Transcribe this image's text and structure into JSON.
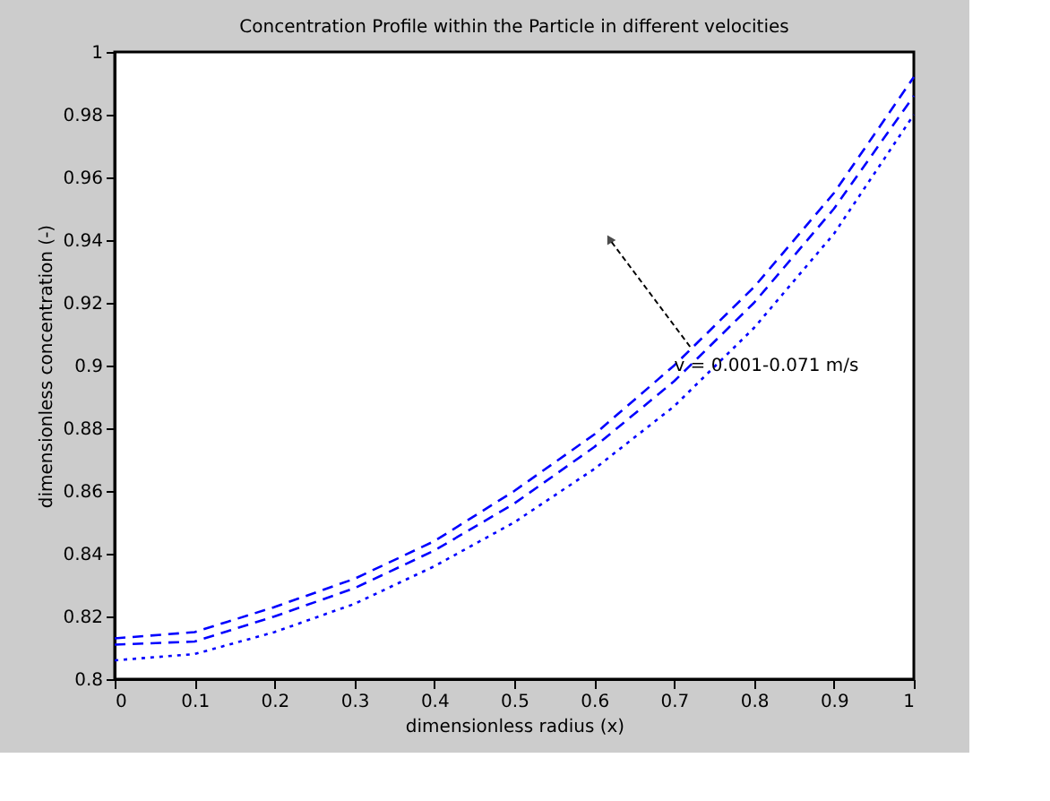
{
  "chart_data": {
    "type": "line",
    "title": "Concentration Profile within the Particle in different velocities",
    "xlabel": "dimensionless radius (x)",
    "ylabel": "dimensionless concentration (-)",
    "x": [
      0,
      0.1,
      0.2,
      0.3,
      0.4,
      0.5,
      0.6,
      0.7,
      0.8,
      0.9,
      1
    ],
    "series": [
      {
        "color": "#0000ff",
        "line_style": "dashed",
        "values": [
          0.813,
          0.815,
          0.823,
          0.832,
          0.844,
          0.86,
          0.878,
          0.9,
          0.925,
          0.955,
          0.992
        ]
      },
      {
        "color": "#0000ff",
        "line_style": "dashed",
        "values": [
          0.811,
          0.812,
          0.82,
          0.829,
          0.841,
          0.856,
          0.874,
          0.895,
          0.92,
          0.95,
          0.986
        ]
      },
      {
        "color": "#0000ff",
        "line_style": "dotted",
        "values": [
          0.806,
          0.808,
          0.815,
          0.824,
          0.836,
          0.85,
          0.867,
          0.887,
          0.912,
          0.942,
          0.98
        ]
      }
    ],
    "xlim": [
      0,
      1
    ],
    "xticks": [
      0,
      0.1,
      0.2,
      0.3,
      0.4,
      0.5,
      0.6,
      0.7,
      0.8,
      0.9,
      1
    ],
    "ylim": [
      0.8,
      1
    ],
    "yticks": [
      0.8,
      0.82,
      0.84,
      0.86,
      0.88,
      0.9,
      0.92,
      0.94,
      0.96,
      0.98,
      1
    ],
    "grid": false,
    "marker": "none",
    "annotations": [
      "v = 0.001-0.071 m/s"
    ]
  }
}
